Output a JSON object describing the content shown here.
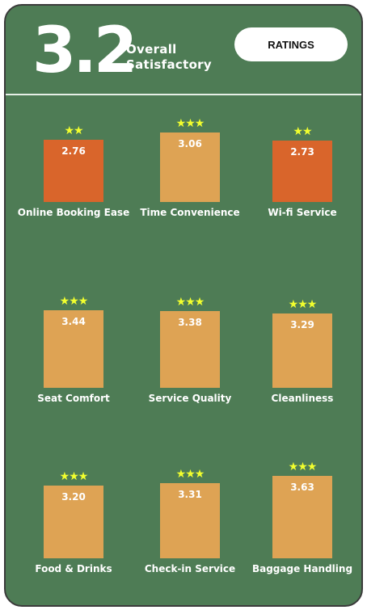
{
  "header": {
    "score": "3.2",
    "score_label_line1": "Overall",
    "score_label_line2": "Satisfactory",
    "ratings_button": "RATINGS"
  },
  "colors": {
    "background": "#4e7c55",
    "high_bar": "#dea354",
    "low_bar": "#d9652b",
    "stars": "#f2ff2e"
  },
  "chart_data": {
    "type": "bar",
    "ylim": [
      0,
      5
    ],
    "items": [
      {
        "category": "Online Booking Ease",
        "value": 2.76,
        "label": "2.76",
        "stars": 2
      },
      {
        "category": "Time Convenience",
        "value": 3.06,
        "label": "3.06",
        "stars": 3
      },
      {
        "category": "Wi-fi Service",
        "value": 2.73,
        "label": "2.73",
        "stars": 2
      },
      {
        "category": "Seat Comfort",
        "value": 3.44,
        "label": "3.44",
        "stars": 3
      },
      {
        "category": "Service Quality",
        "value": 3.38,
        "label": "3.38",
        "stars": 3
      },
      {
        "category": "Cleanliness",
        "value": 3.29,
        "label": "3.29",
        "stars": 3
      },
      {
        "category": "Food & Drinks",
        "value": 3.2,
        "label": "3.20",
        "stars": 3
      },
      {
        "category": "Check-in Service",
        "value": 3.31,
        "label": "3.31",
        "stars": 3
      },
      {
        "category": "Baggage Handling",
        "value": 3.63,
        "label": "3.63",
        "stars": 3
      }
    ]
  }
}
